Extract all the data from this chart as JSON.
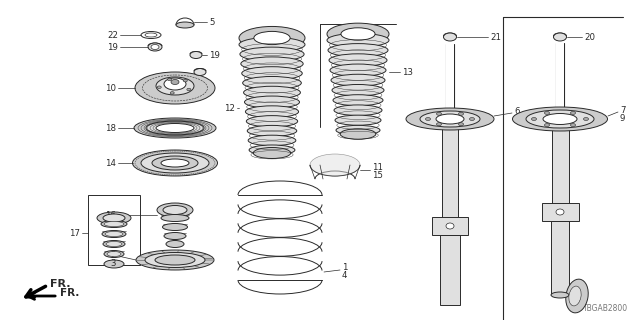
{
  "bg_color": "#ffffff",
  "text_color": "#1a1a1a",
  "line_color": "#2a2a2a",
  "diagram_code": "TBGAB2800",
  "fr_label": "FR.",
  "parts": {
    "label_fs": 6.2,
    "small_fs": 5.8
  }
}
